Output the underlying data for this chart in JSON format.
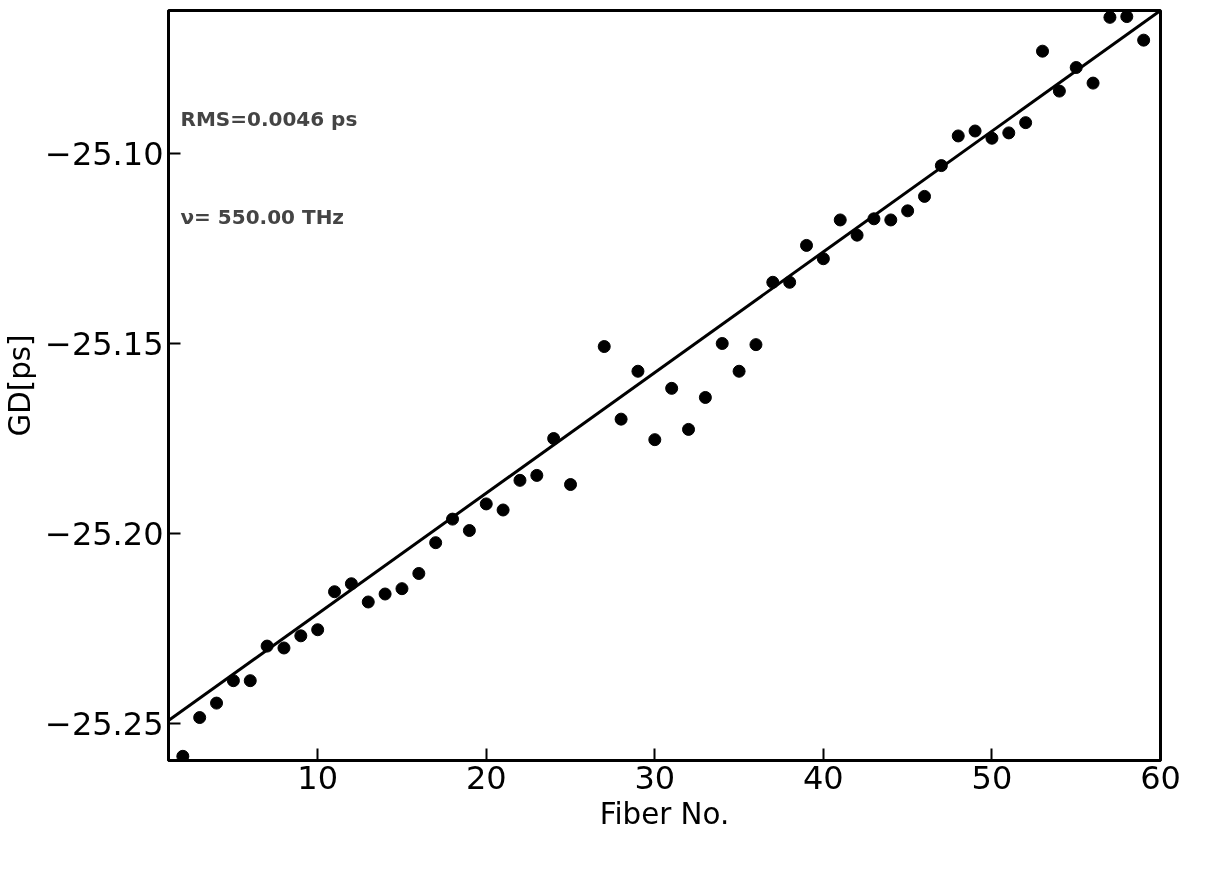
{
  "chart_data": {
    "type": "scatter",
    "xlabel": "Fiber No.",
    "ylabel": "GD[ps]",
    "annotations": [
      "RMS=0.0046 ps",
      "ν= 550.00 THz"
    ],
    "xlim": [
      1.15,
      60
    ],
    "ylim": [
      -25.2597,
      -25.0624
    ],
    "xticks": [
      10,
      20,
      30,
      40,
      50,
      60
    ],
    "yticks": [
      {
        "value": -25.25,
        "label": "−25.25"
      },
      {
        "value": -25.2,
        "label": "−25.20"
      },
      {
        "value": -25.15,
        "label": "−25.15"
      },
      {
        "value": -25.1,
        "label": "−25.10"
      }
    ],
    "grid": false,
    "series": [
      {
        "marker": "circle",
        "color": "#000000",
        "x": [
          2,
          3,
          4,
          5,
          6,
          7,
          8,
          9,
          10,
          11,
          12,
          13,
          14,
          15,
          16,
          17,
          18,
          19,
          20,
          21,
          22,
          23,
          24,
          25,
          27,
          28,
          29,
          30,
          31,
          32,
          33,
          34,
          35,
          36,
          37,
          38,
          39,
          40,
          41,
          42,
          43,
          44,
          45,
          46,
          47,
          48,
          49,
          50,
          51,
          52,
          53,
          54,
          55,
          56,
          57,
          58,
          59
        ],
        "values": [
          -25.2586,
          -25.2484,
          -25.2446,
          -25.2387,
          -25.2387,
          -25.2296,
          -25.2301,
          -25.2269,
          -25.2253,
          -25.2153,
          -25.2132,
          -25.218,
          -25.2159,
          -25.2145,
          -25.2105,
          -25.2024,
          -25.1962,
          -25.1992,
          -25.1922,
          -25.1938,
          -25.186,
          -25.1847,
          -25.175,
          -25.1871,
          -25.1508,
          -25.1699,
          -25.1573,
          -25.1753,
          -25.1618,
          -25.1726,
          -25.1642,
          -25.15,
          -25.1573,
          -25.1503,
          -25.1339,
          -25.1339,
          -25.1242,
          -25.1277,
          -25.1175,
          -25.1215,
          -25.1172,
          -25.1175,
          -25.1151,
          -25.1113,
          -25.1032,
          -25.0954,
          -25.0941,
          -25.096,
          -25.0946,
          -25.0919,
          -25.0731,
          -25.0836,
          -25.0774,
          -25.0815,
          -25.0642,
          -25.064,
          -25.0702
        ]
      },
      {
        "type": "line",
        "color": "#000000",
        "x": [
          1.15,
          60
        ],
        "values": [
          -25.2492,
          -25.0624
        ]
      }
    ]
  }
}
